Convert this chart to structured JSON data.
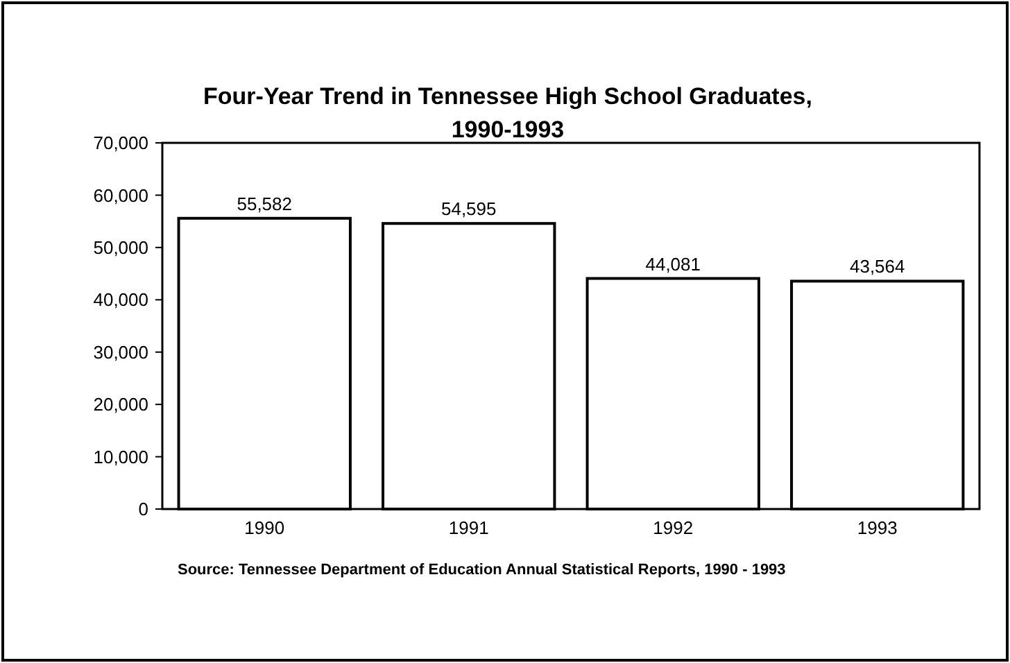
{
  "chart_data": {
    "type": "bar",
    "title": "Four-Year Trend in Tennessee High School Graduates, 1990-1993",
    "categories": [
      "1990",
      "1991",
      "1992",
      "1993"
    ],
    "values": [
      55582,
      54595,
      44081,
      43564
    ],
    "color": "#ffffff",
    "ylim": [
      0,
      70000
    ],
    "yticks": [
      {
        "value": 0,
        "label": "0"
      },
      {
        "value": 10000,
        "label": "10,000"
      },
      {
        "value": 20000,
        "label": "20,000"
      },
      {
        "value": 30000,
        "label": "30,000"
      },
      {
        "value": 40000,
        "label": "40,000"
      },
      {
        "value": 50000,
        "label": "50,000"
      },
      {
        "value": 60000,
        "label": "60,000"
      },
      {
        "value": 70000,
        "label": "70,000"
      }
    ],
    "value_labels": [
      "55,582",
      "54,595",
      "44,081",
      "43,564"
    ],
    "grid": false,
    "annotations": [
      "Source: Tennessee Department of Education Annual Statistical Reports, 1990 - 1993"
    ]
  }
}
